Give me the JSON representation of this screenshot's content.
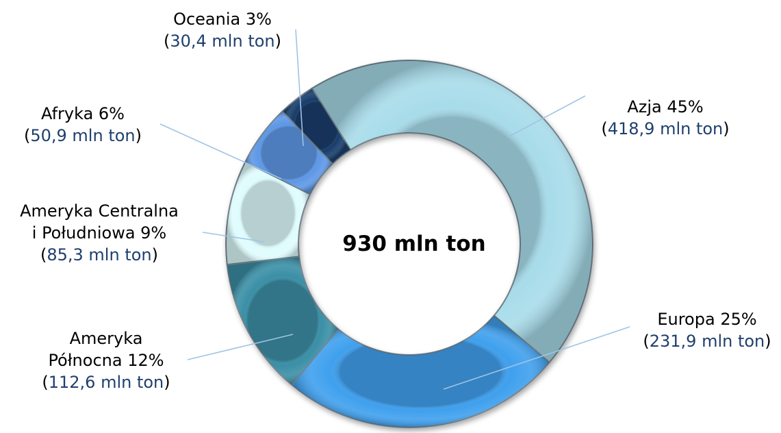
{
  "chart_data": {
    "type": "pie",
    "variant": "donut",
    "center_label": "930 mln ton",
    "unit": "mln ton",
    "legend": "none",
    "slices": [
      {
        "name": "Azja",
        "percent": 45,
        "value": 418.9,
        "color": "#a8dcea",
        "label_lines": [
          "Azja 45%"
        ],
        "value_text": "418,9 mln ton"
      },
      {
        "name": "Europa",
        "percent": 25,
        "value": 231.9,
        "color": "#3fa0ee",
        "label_lines": [
          "Europa 25%"
        ],
        "value_text": "231,9 mln ton"
      },
      {
        "name": "Ameryka Północna",
        "percent": 12,
        "value": 112.6,
        "color": "#3a8fa6",
        "label_lines": [
          "Ameryka",
          "Północna 12%"
        ],
        "value_text": "112,6 mln ton"
      },
      {
        "name": "Ameryka Centralna i Południowa",
        "percent": 9,
        "value": 85.3,
        "color": "#dffcfd",
        "label_lines": [
          "Ameryka Centralna",
          "i Południowa 9%"
        ],
        "value_text": "85,3 mln ton"
      },
      {
        "name": "Afryka",
        "percent": 6,
        "value": 50.9,
        "color": "#5e98e6",
        "label_lines": [
          "Afryka 6%"
        ],
        "value_text": "50,9 mln ton"
      },
      {
        "name": "Oceania",
        "percent": 3,
        "value": 30.4,
        "color": "#183d6b",
        "label_lines": [
          "Oceania 3%"
        ],
        "value_text": "30,4 mln ton"
      }
    ]
  }
}
